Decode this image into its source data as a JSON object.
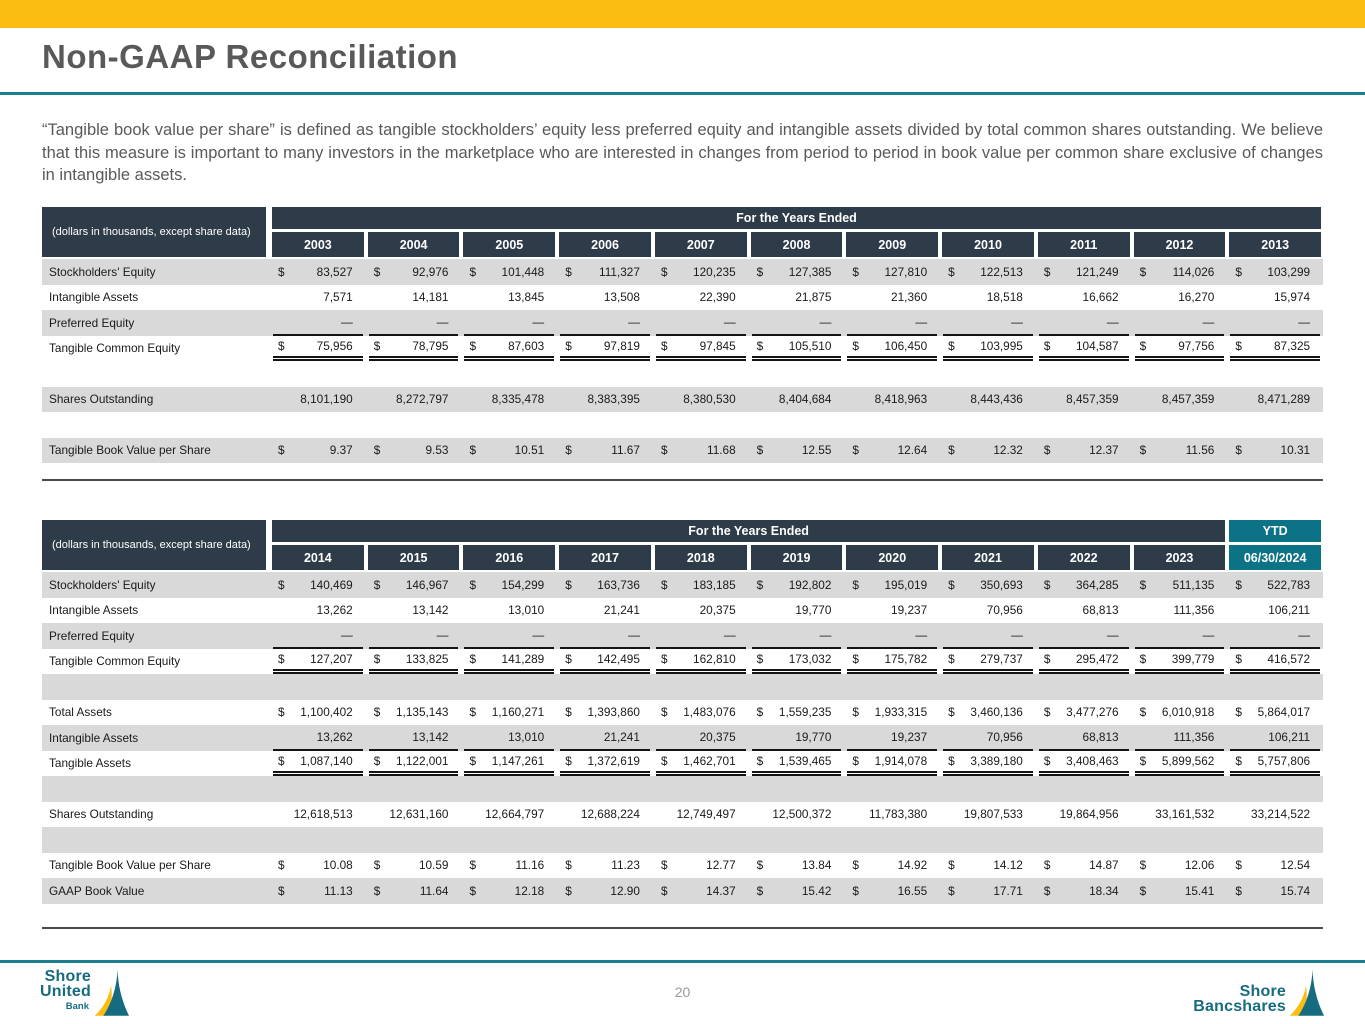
{
  "colors": {
    "gold": "#FBBD11",
    "teal": "#17808E",
    "navy": "#2E3B48",
    "teal_header": "#0C7286",
    "row_gray": "#D9D9D9"
  },
  "header": {
    "title": "Non-GAAP Reconciliation"
  },
  "intro": {
    "text": "“Tangible book value per share” is defined as tangible stockholders’ equity less preferred equity and intangible assets divided by total common shares outstanding. We believe that this measure is important to many investors in the marketplace who are interested in changes from period to period in book value per common share exclusive of changes in intangible assets."
  },
  "tables": {
    "table1": {
      "corner_label": "(dollars in thousands, except share data)",
      "band_label": "For the Years Ended",
      "years": [
        "2003",
        "2004",
        "2005",
        "2006",
        "2007",
        "2008",
        "2009",
        "2010",
        "2011",
        "2012",
        "2013"
      ],
      "ytd": null,
      "rows": [
        {
          "label": "Stockholders' Equity",
          "dollar": true,
          "underline": "none",
          "bg": "gray",
          "values": [
            "83,527",
            "92,976",
            "101,448",
            "111,327",
            "120,235",
            "127,385",
            "127,810",
            "122,513",
            "121,249",
            "114,026",
            "103,299"
          ]
        },
        {
          "label": "Intangible Assets",
          "dollar": false,
          "underline": "none",
          "bg": "white",
          "values": [
            "7,571",
            "14,181",
            "13,845",
            "13,508",
            "22,390",
            "21,875",
            "21,360",
            "18,518",
            "16,662",
            "16,270",
            "15,974"
          ]
        },
        {
          "label": "Preferred Equity",
          "dollar": false,
          "underline": "single",
          "bg": "gray",
          "values": [
            "—",
            "—",
            "—",
            "—",
            "—",
            "—",
            "—",
            "—",
            "—",
            "—",
            "—"
          ]
        },
        {
          "label": "Tangible Common Equity",
          "dollar": true,
          "underline": "double",
          "bg": "white",
          "values": [
            "75,956",
            "78,795",
            "87,603",
            "97,819",
            "97,845",
            "105,510",
            "106,450",
            "103,995",
            "104,587",
            "97,756",
            "87,325"
          ]
        },
        {
          "spacer": true,
          "bg": "white"
        },
        {
          "label": "Shares Outstanding",
          "dollar": false,
          "underline": "none",
          "bg": "gray",
          "values": [
            "8,101,190",
            "8,272,797",
            "8,335,478",
            "8,383,395",
            "8,380,530",
            "8,404,684",
            "8,418,963",
            "8,443,436",
            "8,457,359",
            "8,457,359",
            "8,471,289"
          ]
        },
        {
          "spacer": true,
          "bg": "white"
        },
        {
          "label": "Tangible Book Value per Share",
          "dollar": true,
          "underline": "none",
          "bg": "gray",
          "values": [
            "9.37",
            "9.53",
            "10.51",
            "11.67",
            "11.68",
            "12.55",
            "12.64",
            "12.32",
            "12.37",
            "11.56",
            "10.31"
          ]
        }
      ]
    },
    "table2": {
      "corner_label": "(dollars in thousands, except share data)",
      "band_label": "For the Years Ended",
      "years": [
        "2014",
        "2015",
        "2016",
        "2017",
        "2018",
        "2019",
        "2020",
        "2021",
        "2022",
        "2023"
      ],
      "ytd": {
        "band": "YTD",
        "date": "06/30/2024"
      },
      "rows": [
        {
          "label": "Stockholders' Equity",
          "dollar": true,
          "underline": "none",
          "bg": "gray",
          "values": [
            "140,469",
            "146,967",
            "154,299",
            "163,736",
            "183,185",
            "192,802",
            "195,019",
            "350,693",
            "364,285",
            "511,135",
            "522,783"
          ]
        },
        {
          "label": "Intangible Assets",
          "dollar": false,
          "underline": "none",
          "bg": "white",
          "values": [
            "13,262",
            "13,142",
            "13,010",
            "21,241",
            "20,375",
            "19,770",
            "19,237",
            "70,956",
            "68,813",
            "111,356",
            "106,211"
          ]
        },
        {
          "label": "Preferred Equity",
          "dollar": false,
          "underline": "single",
          "bg": "gray",
          "values": [
            "—",
            "—",
            "—",
            "—",
            "—",
            "—",
            "—",
            "—",
            "—",
            "—",
            "—"
          ]
        },
        {
          "label": "Tangible Common Equity",
          "dollar": true,
          "underline": "double",
          "bg": "white",
          "values": [
            "127,207",
            "133,825",
            "141,289",
            "142,495",
            "162,810",
            "173,032",
            "175,782",
            "279,737",
            "295,472",
            "399,779",
            "416,572"
          ]
        },
        {
          "spacer": true,
          "bg": "gray"
        },
        {
          "label": "Total Assets",
          "dollar": true,
          "underline": "none",
          "bg": "white",
          "values": [
            "1,100,402",
            "1,135,143",
            "1,160,271",
            "1,393,860",
            "1,483,076",
            "1,559,235",
            "1,933,315",
            "3,460,136",
            "3,477,276",
            "6,010,918",
            "5,864,017"
          ]
        },
        {
          "label": "Intangible Assets",
          "dollar": false,
          "underline": "single",
          "bg": "gray",
          "values": [
            "13,262",
            "13,142",
            "13,010",
            "21,241",
            "20,375",
            "19,770",
            "19,237",
            "70,956",
            "68,813",
            "111,356",
            "106,211"
          ]
        },
        {
          "label": "Tangible Assets",
          "dollar": true,
          "underline": "double",
          "bg": "white",
          "values": [
            "1,087,140",
            "1,122,001",
            "1,147,261",
            "1,372,619",
            "1,462,701",
            "1,539,465",
            "1,914,078",
            "3,389,180",
            "3,408,463",
            "5,899,562",
            "5,757,806"
          ]
        },
        {
          "spacer": true,
          "bg": "gray"
        },
        {
          "label": "Shares Outstanding",
          "dollar": false,
          "underline": "none",
          "bg": "white",
          "values": [
            "12,618,513",
            "12,631,160",
            "12,664,797",
            "12,688,224",
            "12,749,497",
            "12,500,372",
            "11,783,380",
            "19,807,533",
            "19,864,956",
            "33,161,532",
            "33,214,522"
          ]
        },
        {
          "spacer": true,
          "bg": "gray"
        },
        {
          "label": "Tangible Book Value per Share",
          "dollar": true,
          "underline": "none",
          "bg": "white",
          "values": [
            "10.08",
            "10.59",
            "11.16",
            "11.23",
            "12.77",
            "13.84",
            "14.92",
            "14.12",
            "14.87",
            "12.06",
            "12.54"
          ]
        },
        {
          "label": "GAAP Book Value",
          "dollar": true,
          "underline": "none",
          "bg": "gray",
          "values": [
            "11.13",
            "11.64",
            "12.18",
            "12.90",
            "14.37",
            "15.42",
            "16.55",
            "17.71",
            "18.34",
            "15.41",
            "15.74"
          ]
        }
      ]
    }
  },
  "footer": {
    "page_number": "20",
    "left_logo": {
      "line1": "Shore",
      "line2": "United",
      "line3": "Bank"
    },
    "right_logo": {
      "line1": "Shore",
      "line2": "Bancshares"
    }
  }
}
